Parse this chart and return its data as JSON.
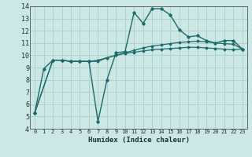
{
  "xlabel": "Humidex (Indice chaleur)",
  "bg_color": "#cce8e4",
  "grid_color": "#b0d0cc",
  "line_color": "#1a6b6b",
  "xlim": [
    -0.5,
    23.5
  ],
  "ylim": [
    4,
    14
  ],
  "xticks": [
    0,
    1,
    2,
    3,
    4,
    5,
    6,
    7,
    8,
    9,
    10,
    11,
    12,
    13,
    14,
    15,
    16,
    17,
    18,
    19,
    20,
    21,
    22,
    23
  ],
  "yticks": [
    4,
    5,
    6,
    7,
    8,
    9,
    10,
    11,
    12,
    13,
    14
  ],
  "line1_x": [
    0,
    1,
    2,
    3,
    4,
    5,
    6,
    7,
    8,
    9,
    10,
    11,
    12,
    13,
    14,
    15,
    16,
    17,
    18,
    19,
    20,
    21,
    22,
    23
  ],
  "line1_y": [
    5.3,
    8.9,
    9.6,
    9.6,
    9.5,
    9.5,
    9.5,
    4.6,
    8.0,
    10.2,
    10.3,
    13.5,
    12.6,
    13.8,
    13.8,
    13.3,
    12.1,
    11.5,
    11.6,
    11.2,
    11.0,
    11.2,
    11.2,
    10.5
  ],
  "line2_x": [
    0,
    2,
    3,
    4,
    5,
    6,
    7,
    8,
    9,
    10,
    11,
    12,
    13,
    14,
    15,
    16,
    17,
    18,
    19,
    20,
    21,
    22,
    23
  ],
  "line2_y": [
    5.3,
    9.6,
    9.6,
    9.5,
    9.5,
    9.5,
    9.5,
    9.8,
    10.0,
    10.2,
    10.4,
    10.6,
    10.75,
    10.85,
    10.95,
    11.05,
    11.1,
    11.15,
    11.1,
    11.0,
    10.95,
    10.9,
    10.5
  ],
  "line3_x": [
    0,
    2,
    3,
    4,
    5,
    6,
    7,
    8,
    9,
    10,
    11,
    12,
    13,
    14,
    15,
    16,
    17,
    18,
    19,
    20,
    21,
    22,
    23
  ],
  "line3_y": [
    5.3,
    9.6,
    9.6,
    9.5,
    9.5,
    9.5,
    9.6,
    9.8,
    10.0,
    10.15,
    10.25,
    10.35,
    10.45,
    10.5,
    10.55,
    10.6,
    10.65,
    10.65,
    10.6,
    10.55,
    10.5,
    10.45,
    10.5
  ]
}
